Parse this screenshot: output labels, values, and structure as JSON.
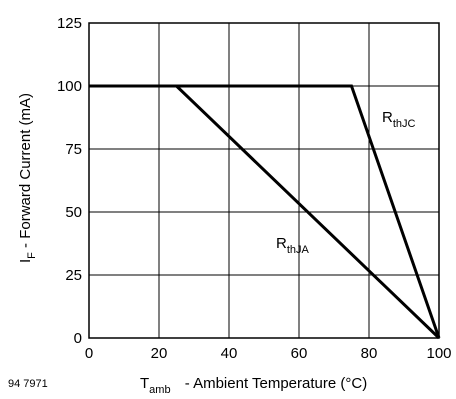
{
  "chart_data": {
    "type": "line",
    "xlabel": {
      "symbol": "T",
      "subscript": "amb",
      "text": " - Ambient Temperature (°C)"
    },
    "ylabel": {
      "symbol": "I",
      "subscript": "F",
      "text": " - Forward Current (mA)"
    },
    "xlim": [
      0,
      100
    ],
    "ylim": [
      0,
      125
    ],
    "xticks": [
      "0",
      "20",
      "40",
      "60",
      "80",
      "100"
    ],
    "yticks": [
      "0",
      "25",
      "50",
      "75",
      "100",
      "125"
    ],
    "grid": true,
    "figure_id": "94 7971",
    "series": [
      {
        "name": {
          "symbol": "R",
          "subscript": "thJC"
        },
        "points": [
          [
            0,
            100
          ],
          [
            75,
            100
          ],
          [
            100,
            0
          ]
        ]
      },
      {
        "name": {
          "symbol": "R",
          "subscript": "thJA"
        },
        "points": [
          [
            0,
            100
          ],
          [
            25,
            100
          ],
          [
            100,
            0
          ]
        ]
      }
    ],
    "colors": {
      "line": "#000000",
      "grid": "#000000"
    }
  }
}
